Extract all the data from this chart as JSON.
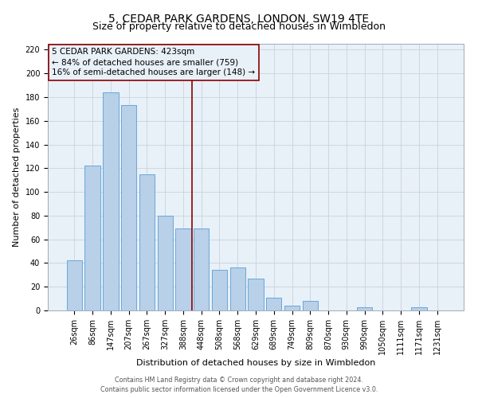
{
  "title": "5, CEDAR PARK GARDENS, LONDON, SW19 4TE",
  "subtitle": "Size of property relative to detached houses in Wimbledon",
  "xlabel": "Distribution of detached houses by size in Wimbledon",
  "ylabel": "Number of detached properties",
  "bar_labels": [
    "26sqm",
    "86sqm",
    "147sqm",
    "207sqm",
    "267sqm",
    "327sqm",
    "388sqm",
    "448sqm",
    "508sqm",
    "568sqm",
    "629sqm",
    "689sqm",
    "749sqm",
    "809sqm",
    "870sqm",
    "930sqm",
    "990sqm",
    "1050sqm",
    "1111sqm",
    "1171sqm",
    "1231sqm"
  ],
  "bar_values": [
    42,
    122,
    184,
    173,
    115,
    80,
    69,
    69,
    34,
    36,
    27,
    11,
    4,
    8,
    0,
    0,
    3,
    0,
    0,
    3,
    0
  ],
  "bar_color": "#b8d0e8",
  "bar_edge_color": "#5a9fd4",
  "ylim": [
    0,
    225
  ],
  "yticks": [
    0,
    20,
    40,
    60,
    80,
    100,
    120,
    140,
    160,
    180,
    200,
    220
  ],
  "property_label": "5 CEDAR PARK GARDENS: 423sqm",
  "annotation_line1": "← 84% of detached houses are smaller (759)",
  "annotation_line2": "16% of semi-detached houses are larger (148) →",
  "vline_x_index": 6.5,
  "footer_line1": "Contains HM Land Registry data © Crown copyright and database right 2024.",
  "footer_line2": "Contains public sector information licensed under the Open Government Licence v3.0.",
  "bg_color": "#ffffff",
  "plot_bg_color": "#e8f0f8",
  "grid_color": "#c8d4e0",
  "title_fontsize": 10,
  "subtitle_fontsize": 9,
  "axis_label_fontsize": 8,
  "tick_fontsize": 7,
  "annotation_fontsize": 7.5,
  "footer_fontsize": 5.8
}
